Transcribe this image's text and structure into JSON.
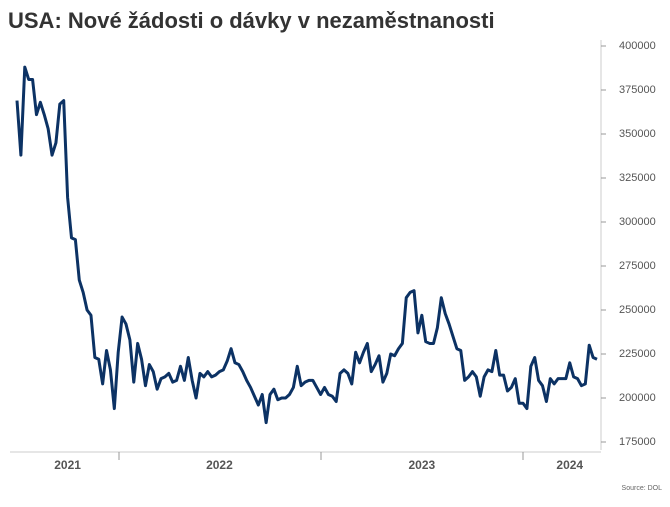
{
  "chart_data": {
    "type": "line",
    "title": "USA: Nové žádosti o dávky v nezaměstnanosti",
    "source": "Source: DOL",
    "categories": [
      null,
      null,
      null,
      null,
      null,
      null,
      null,
      null,
      null,
      null,
      null,
      null,
      null,
      "2021",
      null,
      null,
      null,
      null,
      null,
      null,
      null,
      null,
      null,
      null,
      null,
      null,
      null,
      null,
      null,
      null,
      null,
      null,
      null,
      null,
      null,
      null,
      null,
      null,
      null,
      null,
      null,
      null,
      null,
      null,
      null,
      null,
      null,
      null,
      null,
      null,
      null,
      null,
      "2022",
      null,
      null,
      null,
      null,
      null,
      null,
      null,
      null,
      null,
      null,
      null,
      null,
      null,
      null,
      null,
      null,
      null,
      null,
      null,
      null,
      null,
      null,
      null,
      null,
      null,
      null,
      null,
      null,
      null,
      null,
      null,
      null,
      null,
      null,
      null,
      null,
      null,
      null,
      null,
      null,
      null,
      null,
      null,
      null,
      null,
      null,
      null,
      null,
      null,
      null,
      null,
      "2023",
      null,
      null,
      null,
      null,
      null,
      null,
      null,
      null,
      null,
      null,
      null,
      null,
      null,
      null,
      null,
      null,
      null,
      null,
      null,
      null,
      null,
      null,
      null,
      null,
      null,
      null,
      null,
      null,
      null,
      null,
      null,
      null,
      null,
      null,
      null,
      null,
      null,
      "2024",
      null,
      null,
      null,
      null,
      null,
      null,
      null
    ],
    "series": [
      {
        "color": "#0c3264",
        "values": [
          369000,
          338000,
          388000,
          381000,
          381000,
          361000,
          368000,
          361000,
          353000,
          338000,
          345000,
          367000,
          369000,
          314000,
          291000,
          290000,
          267000,
          260000,
          250000,
          247000,
          223000,
          222000,
          208000,
          227000,
          216000,
          194000,
          226000,
          246000,
          242000,
          233000,
          209000,
          231000,
          222000,
          207000,
          219000,
          215000,
          205000,
          211000,
          212000,
          214000,
          209000,
          210000,
          218000,
          210000,
          223000,
          210000,
          200000,
          214000,
          212000,
          215000,
          212000,
          213000,
          215000,
          216000,
          221000,
          228000,
          220000,
          219000,
          215000,
          210000,
          206000,
          201000,
          196000,
          202000,
          186000,
          202000,
          205000,
          199000,
          200000,
          200000,
          202000,
          206000,
          218000,
          207000,
          209000,
          210000,
          210000,
          206000,
          202000,
          206000,
          202000,
          201000,
          198000,
          214000,
          216000,
          214000,
          208000,
          226000,
          220000,
          226000,
          231000,
          215000,
          219000,
          224000,
          209000,
          214000,
          225000,
          224000,
          228000,
          231000,
          257000,
          260000,
          261000,
          237000,
          247000,
          232000,
          231000,
          231000,
          240000,
          257000,
          248000,
          242000,
          235000,
          228000,
          227000,
          210000,
          212000,
          215000,
          212000,
          201000,
          212000,
          216000,
          215000,
          227000,
          213000,
          213000,
          204000,
          206000,
          211000,
          197000,
          197000,
          194000,
          218000,
          223000,
          210000,
          207000,
          198000,
          211000,
          208000,
          211000,
          211000,
          211000,
          220000,
          212000,
          211000,
          207000,
          208000,
          230000,
          223000,
          222000
        ]
      }
    ],
    "ylim": [
      175000,
      400000
    ],
    "yticks": [
      175000,
      200000,
      225000,
      250000,
      275000,
      300000,
      325000,
      350000,
      375000,
      400000
    ]
  }
}
